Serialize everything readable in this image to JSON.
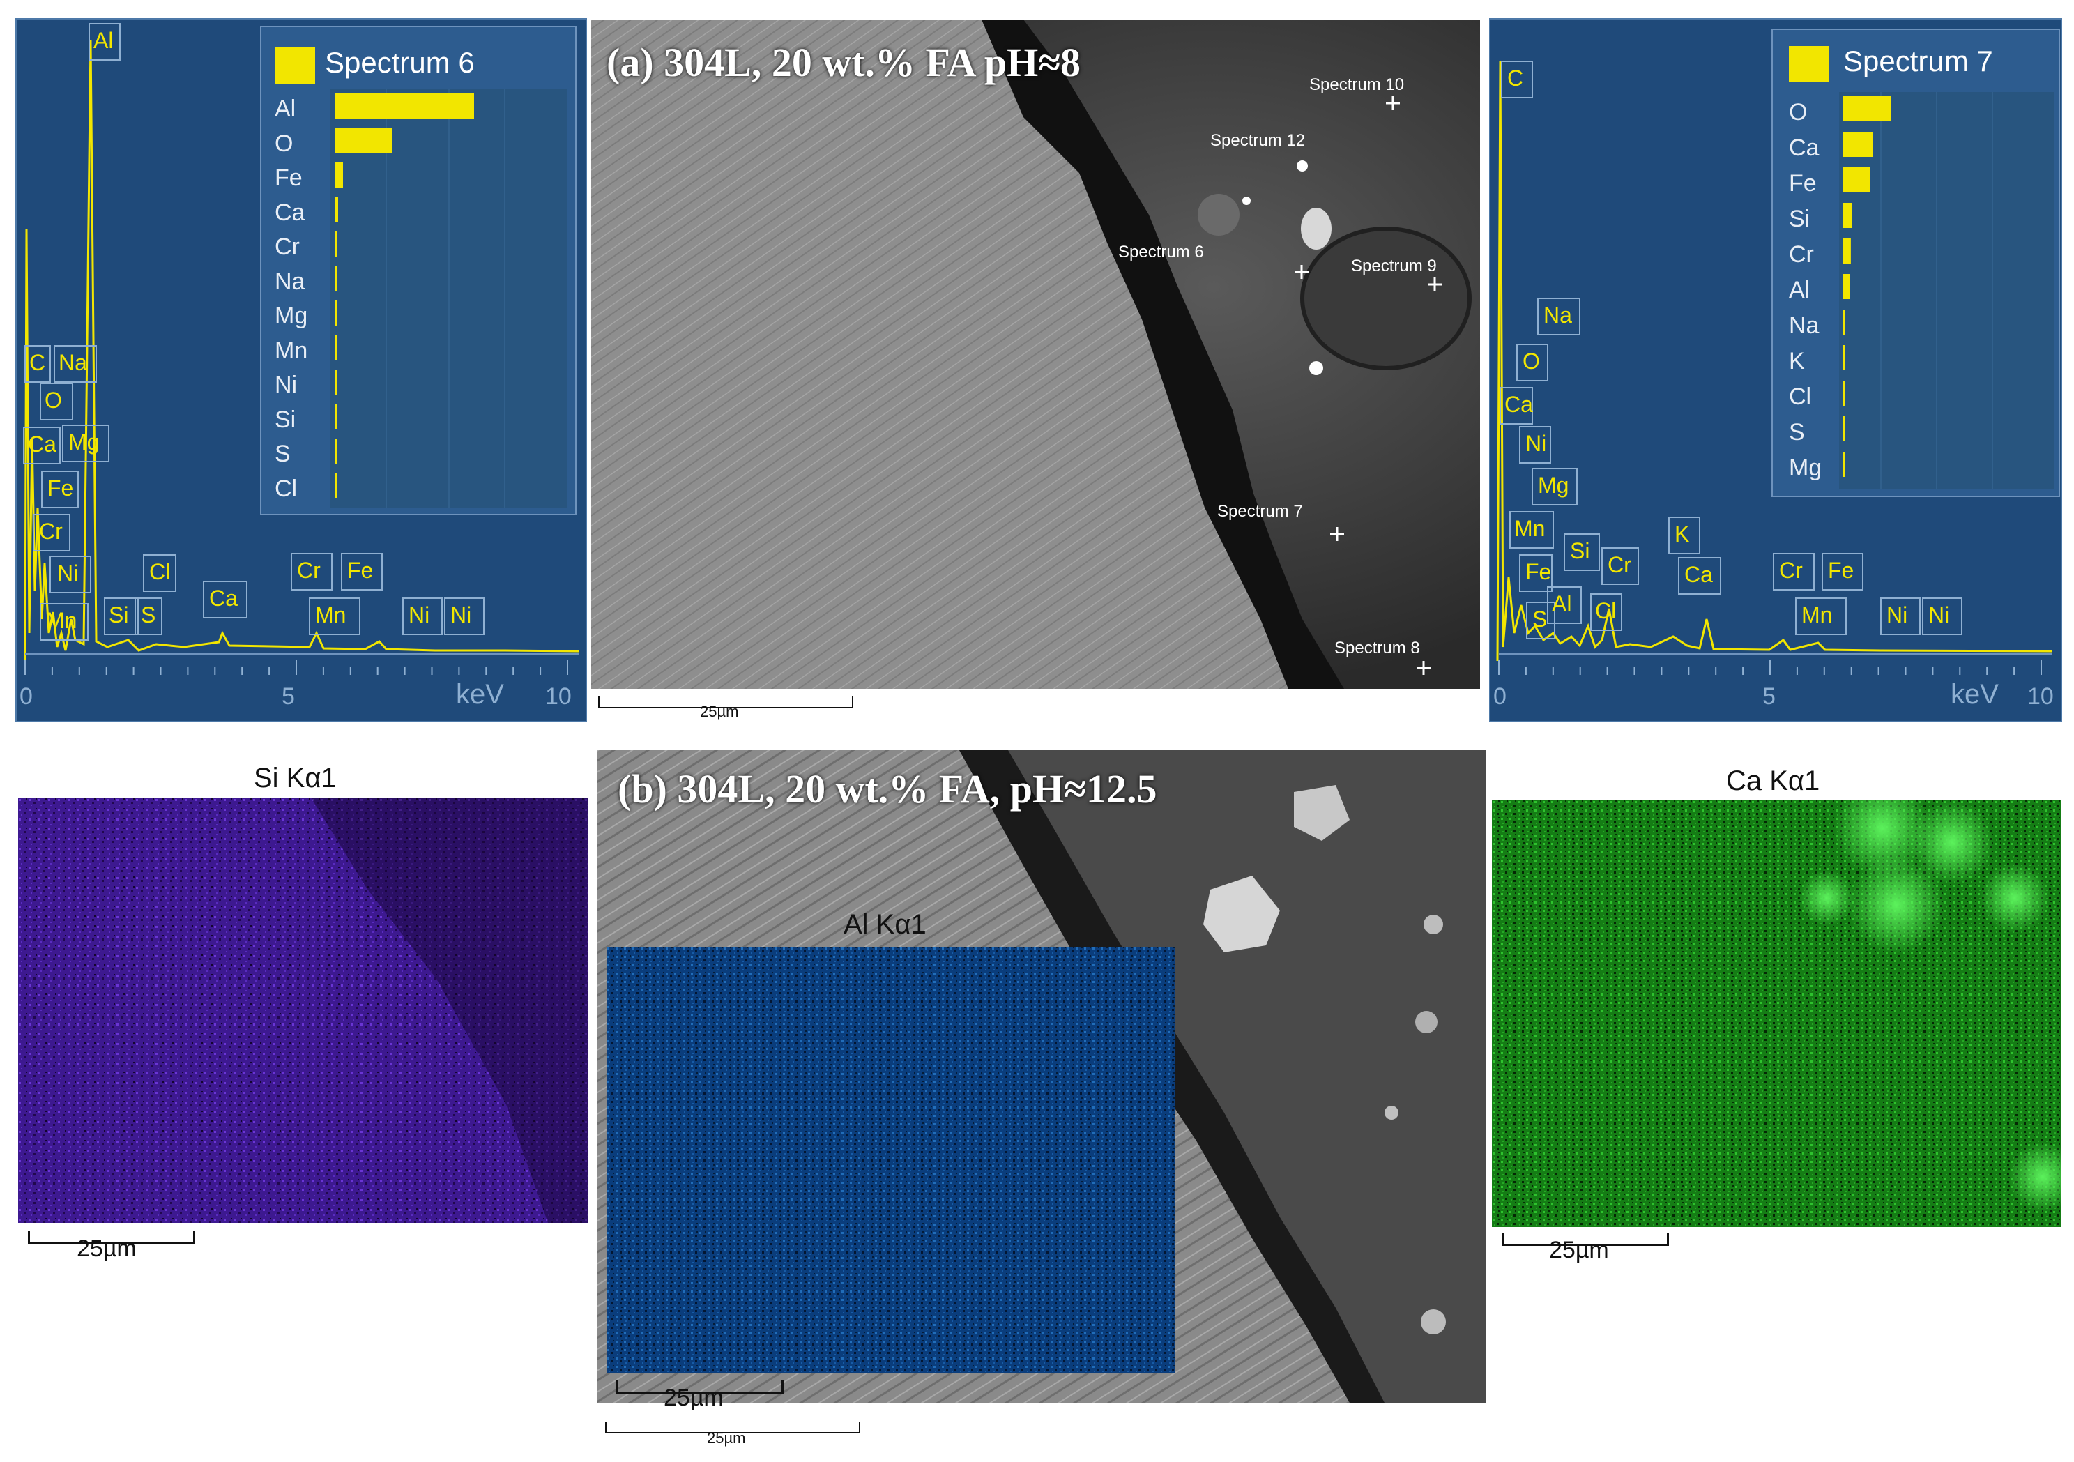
{
  "figure": {
    "panel_a_title": "(a) 304L, 20 wt.% FA pH≈8",
    "panel_b_title": "(b) 304L, 20 wt.% FA, pH≈12.5"
  },
  "eds_left": {
    "legend_title": "Spectrum 6",
    "elements": [
      {
        "label": "Al",
        "value": 1.0
      },
      {
        "label": "O",
        "value": 0.41
      },
      {
        "label": "Fe",
        "value": 0.06
      },
      {
        "label": "Ca",
        "value": 0.025
      },
      {
        "label": "Cr",
        "value": 0.02
      },
      {
        "label": "Na",
        "value": 0.01
      },
      {
        "label": "Mg",
        "value": 0.01
      },
      {
        "label": "Mn",
        "value": 0.008
      },
      {
        "label": "Ni",
        "value": 0.008
      },
      {
        "label": "Si",
        "value": 0.008
      },
      {
        "label": "S",
        "value": 0.006
      },
      {
        "label": "Cl",
        "value": 0.006
      }
    ],
    "axis": {
      "min": 0,
      "max": 10,
      "unit": "keV",
      "ticks": [
        "0",
        "5",
        "10"
      ]
    },
    "peak_labels": [
      "Al",
      "C",
      "Na",
      "O",
      "Ca",
      "Mg",
      "Fe",
      "Cr",
      "Ni",
      "Mn",
      "Si",
      "S",
      "Cl",
      "Ca",
      "Cr",
      "Fe",
      "Mn",
      "Ni",
      "Ni"
    ]
  },
  "eds_right": {
    "legend_title": "Spectrum 7",
    "elements": [
      {
        "label": "O",
        "value": 1.0
      },
      {
        "label": "Ca",
        "value": 0.62
      },
      {
        "label": "Fe",
        "value": 0.56
      },
      {
        "label": "Si",
        "value": 0.18
      },
      {
        "label": "Cr",
        "value": 0.16
      },
      {
        "label": "Al",
        "value": 0.14
      },
      {
        "label": "Na",
        "value": 0.03
      },
      {
        "label": "K",
        "value": 0.03
      },
      {
        "label": "Cl",
        "value": 0.03
      },
      {
        "label": "S",
        "value": 0.02
      },
      {
        "label": "Mg",
        "value": 0.02
      }
    ],
    "axis": {
      "min": 0,
      "max": 10,
      "unit": "keV",
      "ticks": [
        "0",
        "5",
        "10"
      ]
    },
    "peak_labels": [
      "C",
      "Na",
      "O",
      "Ca",
      "Ni",
      "Mg",
      "Mn",
      "Fe",
      "Cr",
      "Si",
      "Al",
      "Cl",
      "S",
      "K",
      "Ca",
      "Cr",
      "Fe",
      "Mn",
      "Ni",
      "Ni"
    ]
  },
  "sem_a": {
    "spectrum_markers": [
      "Spectrum 10",
      "Spectrum 12",
      "Spectrum 6",
      "Spectrum 9",
      "Spectrum 7",
      "Spectrum 8"
    ],
    "scalebar": "25µm"
  },
  "maps": {
    "si_label": "Si Kα1",
    "ca_label": "Ca Kα1",
    "al_label": "Al Kα1",
    "si_scalebar": "25µm",
    "ca_scalebar": "25µm",
    "al_scalebar": "25µm",
    "sem_b_scalebar": "25µm"
  },
  "colors": {
    "eds_background": "#1f4a7a",
    "eds_trace": "#f2e600",
    "si_map": "#4a1ea8",
    "ca_map": "#1e9a1e",
    "al_map": "#1566c0"
  }
}
